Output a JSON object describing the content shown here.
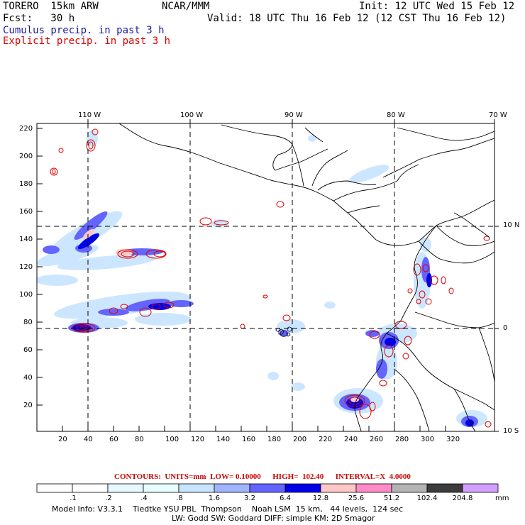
{
  "header": {
    "model": "TORERO  15km ARW",
    "org": "NCAR/MMM",
    "init": "Init: 12 UTC Wed 15 Feb 12",
    "fcst": "Fcst:   30 h",
    "valid": "Valid: 18 UTC Thu 16 Feb 12 (12 CST Thu 16 Feb 12)",
    "line_cumulus": "Cumulus precip. in past 3 h",
    "line_explicit": "Explicit precip. in past 3 h",
    "cumulus_color": "#1a1aa8",
    "explicit_color": "#dd0000"
  },
  "map": {
    "lon_labels": [
      "110 W",
      "100 W",
      "90 W",
      "80 W",
      "70 W"
    ],
    "lat_labels": [
      "10 N",
      "0",
      "10 S"
    ],
    "y_ticks": [
      "220",
      "200",
      "180",
      "160",
      "140",
      "120",
      "100",
      "80",
      "60",
      "40",
      "20"
    ],
    "x_ticks": [
      "20",
      "40",
      "60",
      "80",
      "100",
      "120",
      "140",
      "160",
      "180",
      "200",
      "220",
      "240",
      "260",
      "280",
      "300",
      "320"
    ]
  },
  "contours_line": "CONTOURS:  UNITS=mm  LOW= 0.10000      HIGH=  102.40      INTERVAL=X  4.0000",
  "colorbar": {
    "labels": [
      ".1",
      ".2",
      ".4",
      ".8",
      "1.6",
      "3.2",
      "6.4",
      "12.8",
      "25.6",
      "51.2",
      "102.4",
      "204.8"
    ],
    "unit": "mm",
    "colors": [
      "#ffffff",
      "#ffffff",
      "#e8f8ff",
      "#e8ffff",
      "#c8e4ff",
      "#a0b4ff",
      "#6464ff",
      "#0000e6",
      "#ffc8c8",
      "#ff8cc8",
      "#b4b4b4",
      "#3c3c3c",
      "#d2a0ff"
    ]
  },
  "footer": {
    "line1": "Model Info: V3.3.1    Tiedtke YSU PBL  Thompson    Noah LSM  15 km,   44 levels,  124 sec",
    "line2": "LW: Godd SW: Goddard DIFF: simple KM: 2D Smagor"
  }
}
